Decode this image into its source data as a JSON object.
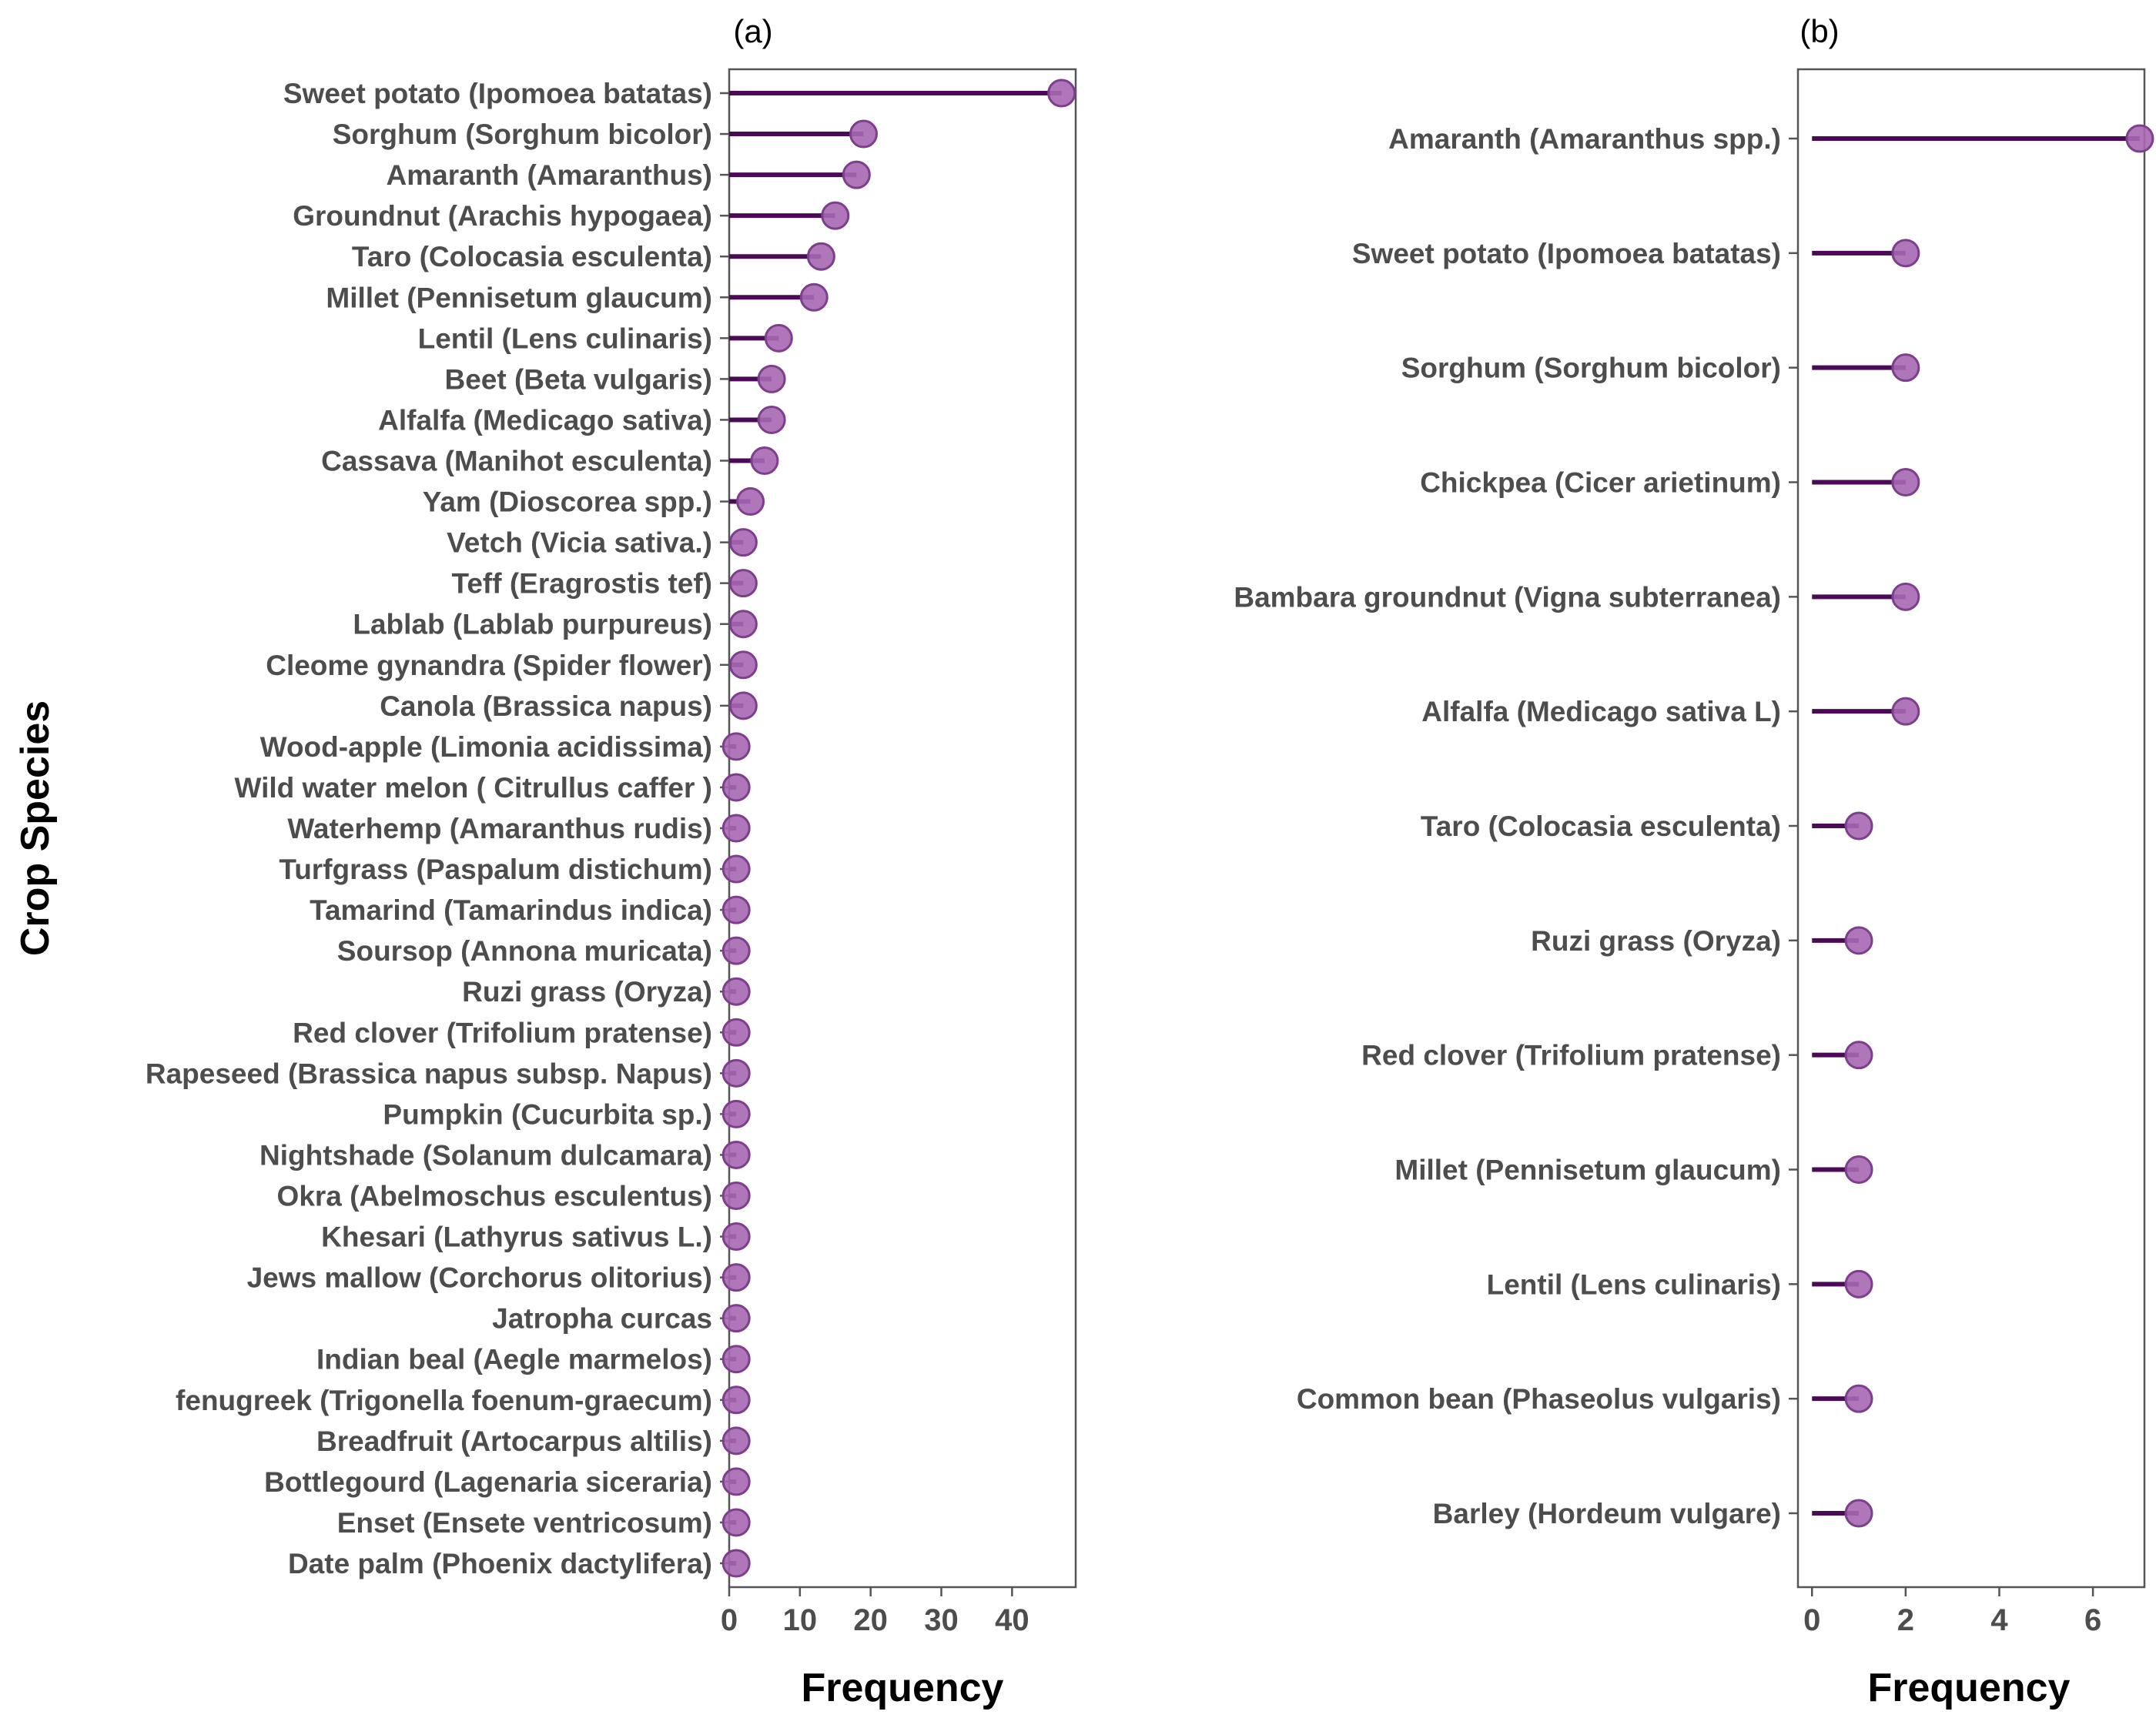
{
  "colors": {
    "stem": "#4a0a55",
    "point_fill": "#a668b3",
    "point_stroke": "#7d3f8c",
    "panel_border": "#555555",
    "text": "#4d4d4d"
  },
  "chart_data": [
    {
      "type": "lollipop",
      "panel_label": "(a)",
      "xlabel": "Frequency",
      "ylabel": "Crop Species",
      "xlim": [
        0,
        49
      ],
      "xticks": [
        "0",
        "10",
        "20",
        "30",
        "40"
      ],
      "categories": [
        "Sweet potato (Ipomoea batatas)",
        "Sorghum (Sorghum bicolor)",
        "Amaranth (Amaranthus)",
        "Groundnut (Arachis hypogaea)",
        "Taro (Colocasia esculenta)",
        "Millet (Pennisetum glaucum)",
        "Lentil (Lens culinaris)",
        "Beet (Beta vulgaris)",
        "Alfalfa (Medicago sativa)",
        "Cassava (Manihot esculenta)",
        "Yam (Dioscorea spp.)",
        "Vetch (Vicia sativa.)",
        "Teff (Eragrostis tef)",
        "Lablab (Lablab purpureus)",
        "Cleome gynandra (Spider flower)",
        "Canola (Brassica napus)",
        "Wood-apple (Limonia acidissima)",
        "Wild  water melon ( Citrullus caffer )",
        "Waterhemp (Amaranthus rudis)",
        "Turfgrass (Paspalum distichum)",
        "Tamarind (Tamarindus indica)",
        "Soursop (Annona muricata)",
        "Ruzi grass (Oryza)",
        "Red clover (Trifolium pratense)",
        "Rapeseed  (Brassica napus subsp. Napus)",
        "Pumpkin (Cucurbita sp.)",
        "Nightshade (Solanum dulcamara)",
        "Okra (Abelmoschus esculentus)",
        "Khesari (Lathyrus sativus L.)",
        "Jews mallow (Corchorus olitorius)",
        "Jatropha curcas",
        "Indian beal (Aegle marmelos)",
        "fenugreek (Trigonella foenum-graecum)",
        "Breadfruit (Artocarpus altilis)",
        "Bottlegourd (Lagenaria siceraria)",
        "Enset (Ensete ventricosum)",
        "Date palm (Phoenix dactylifera)"
      ],
      "values": [
        47,
        19,
        18,
        15,
        13,
        12,
        7,
        6,
        6,
        5,
        3,
        2,
        2,
        2,
        2,
        2,
        1,
        1,
        1,
        1,
        1,
        1,
        1,
        1,
        1,
        1,
        1,
        1,
        1,
        1,
        1,
        1,
        1,
        1,
        1,
        1,
        1
      ]
    },
    {
      "type": "lollipop",
      "panel_label": "(b)",
      "xlabel": "Frequency",
      "xlim": [
        -0.3,
        7.1
      ],
      "xticks": [
        "0",
        "2",
        "4",
        "6"
      ],
      "categories": [
        "Amaranth (Amaranthus spp.)",
        "Sweet potato (Ipomoea batatas)",
        "Sorghum (Sorghum bicolor)",
        "Chickpea (Cicer arietinum)",
        "Bambara groundnut (Vigna subterranea)",
        "Alfalfa (Medicago sativa L)",
        "Taro (Colocasia esculenta)",
        "Ruzi grass (Oryza)",
        "Red clover (Trifolium pratense)",
        "Millet (Pennisetum glaucum)",
        "Lentil (Lens culinaris)",
        "Common bean (Phaseolus vulgaris)",
        "Barley (Hordeum vulgare)"
      ],
      "values": [
        7,
        2,
        2,
        2,
        2,
        2,
        1,
        1,
        1,
        1,
        1,
        1,
        1
      ]
    }
  ]
}
